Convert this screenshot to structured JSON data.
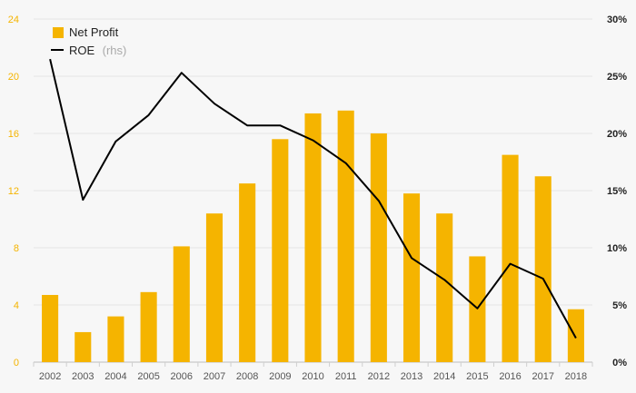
{
  "chart_data": {
    "type": "bar+line",
    "categories": [
      "2002",
      "2003",
      "2004",
      "2005",
      "2006",
      "2007",
      "2008",
      "2009",
      "2010",
      "2011",
      "2012",
      "2013",
      "2014",
      "2015",
      "2016",
      "2017",
      "2018"
    ],
    "series": [
      {
        "name": "Net Profit",
        "kind": "bar",
        "axis": "left",
        "color": "#f5b400",
        "values": [
          4.7,
          2.1,
          3.2,
          4.9,
          8.1,
          10.4,
          12.5,
          15.6,
          17.4,
          17.6,
          16.0,
          11.8,
          10.4,
          7.4,
          14.5,
          13.0,
          3.7
        ]
      },
      {
        "name": "ROE",
        "legend_suffix": "(rhs)",
        "kind": "line",
        "axis": "right",
        "color": "#000000",
        "values": [
          26.5,
          14.2,
          19.3,
          21.6,
          25.3,
          22.6,
          20.7,
          20.7,
          19.4,
          17.4,
          14.1,
          9.1,
          7.2,
          4.7,
          8.6,
          7.3,
          2.1
        ]
      }
    ],
    "yleft": {
      "min": 0,
      "max": 24,
      "ticks": [
        "0",
        "4",
        "8",
        "12",
        "16",
        "20",
        "24"
      ],
      "tick_color": "#f5b400"
    },
    "yright": {
      "min": 0,
      "max": 30,
      "ticks": [
        "0%",
        "5%",
        "10%",
        "15%",
        "20%",
        "25%",
        "30%"
      ]
    },
    "grid": true,
    "legend_position": "top-left"
  }
}
